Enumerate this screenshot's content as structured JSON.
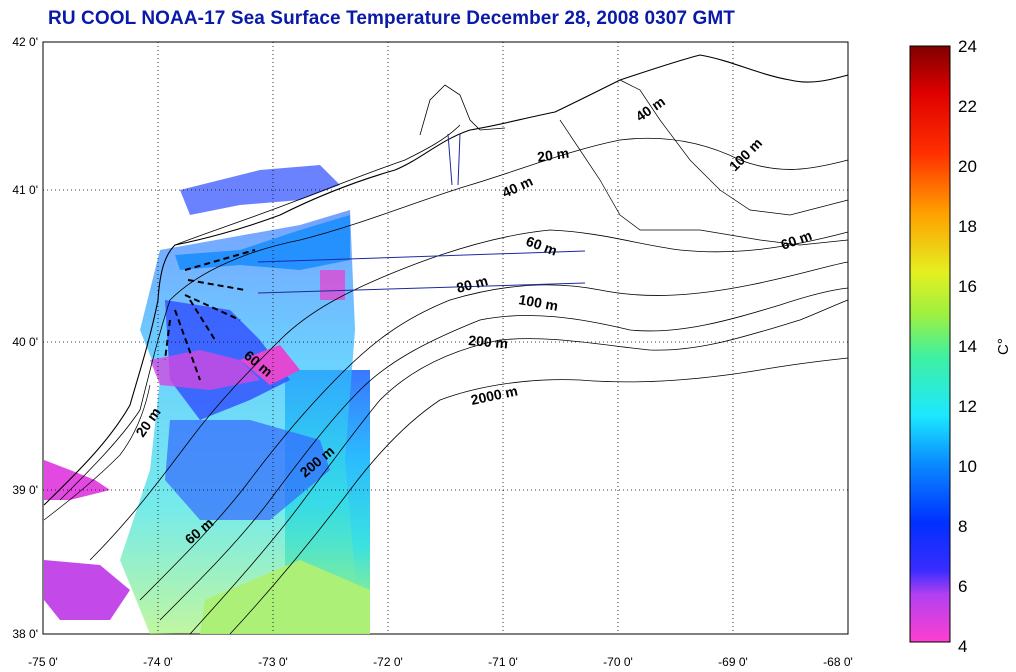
{
  "title": "RU COOL  NOAA-17 Sea Surface Temperature December 28, 2008 0307 GMT",
  "axes": {
    "x_ticks": [
      "-75 0'",
      "-74 0'",
      "-73 0'",
      "-72 0'",
      "-71 0'",
      "-70 0'",
      "-69 0'",
      "-68 0'"
    ],
    "y_ticks": [
      "42 0'",
      "41 0'",
      "40 0'",
      "39 0'",
      "38 0'"
    ],
    "x_range": [
      -75,
      -68
    ],
    "y_range": [
      38,
      42
    ]
  },
  "colorbar": {
    "label": "C°",
    "ticks": [
      "24",
      "22",
      "20",
      "18",
      "16",
      "14",
      "12",
      "10",
      "8",
      "6",
      "4"
    ],
    "range": [
      4,
      24
    ]
  },
  "isobaths": [
    "20 m",
    "40 m",
    "60 m",
    "80 m",
    "100 m",
    "200 m",
    "2000 m",
    "40 m",
    "100 m",
    "60 m",
    "60 m",
    "20 m",
    "200 m",
    "60 m"
  ],
  "colors": {
    "title": "#0a1aa8",
    "axis": "#000000",
    "land": "#ffffff"
  }
}
